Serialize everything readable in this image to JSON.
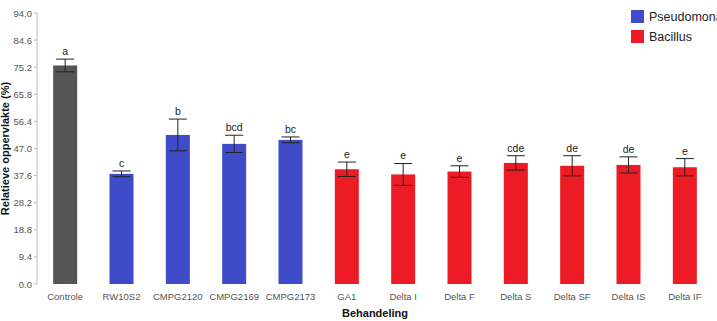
{
  "chart_data": {
    "type": "bar",
    "x_label": "Behandeling",
    "y_label": "Relatieve oppervlakte (%)",
    "categories": [
      "Controle",
      "RW10S2",
      "CMPG2120",
      "CMPG2169",
      "CMPG2173",
      "GA1",
      "Delta I",
      "Delta F",
      "Delta S",
      "Delta SF",
      "Delta IS",
      "Delta IF"
    ],
    "values": [
      75.8,
      38.2,
      51.7,
      48.6,
      50.0,
      39.8,
      38.0,
      39.0,
      42.0,
      41.0,
      41.3,
      40.5
    ],
    "errors": [
      2.2,
      1.0,
      5.5,
      3.0,
      1.0,
      2.5,
      3.8,
      2.0,
      2.5,
      3.5,
      2.8,
      3.0
    ],
    "group_letters": [
      "a",
      "c",
      "b",
      "bcd",
      "bc",
      "e",
      "e",
      "e",
      "cde",
      "de",
      "de",
      "e"
    ],
    "colors": [
      "#555555",
      "#3f4bc8",
      "#3f4bc8",
      "#3f4bc8",
      "#3f4bc8",
      "#ed1c24",
      "#ed1c24",
      "#ed1c24",
      "#ed1c24",
      "#ed1c24",
      "#ed1c24",
      "#ed1c24"
    ],
    "legend_labels": [
      {
        "name": "Pseudomonas",
        "color": "#3f4bc8"
      },
      {
        "name": "Bacillus",
        "color": "#ed1c24"
      }
    ],
    "legend": "top-right",
    "grid": false,
    "ylim": [
      0,
      94
    ],
    "yticks": [
      {
        "value": 0,
        "label": "0.0"
      },
      {
        "value": 9.4,
        "label": "9.4"
      },
      {
        "value": 18.8,
        "label": "18.8"
      },
      {
        "value": 28.2,
        "label": "28.2"
      },
      {
        "value": 37.6,
        "label": "37.6"
      },
      {
        "value": 47,
        "label": "47.0"
      },
      {
        "value": 56.4,
        "label": "56.4"
      },
      {
        "value": 65.8,
        "label": "65.8"
      },
      {
        "value": 75.2,
        "label": "75.2"
      },
      {
        "value": 84.6,
        "label": "84.6"
      },
      {
        "value": 94,
        "label": "94.0"
      }
    ]
  }
}
